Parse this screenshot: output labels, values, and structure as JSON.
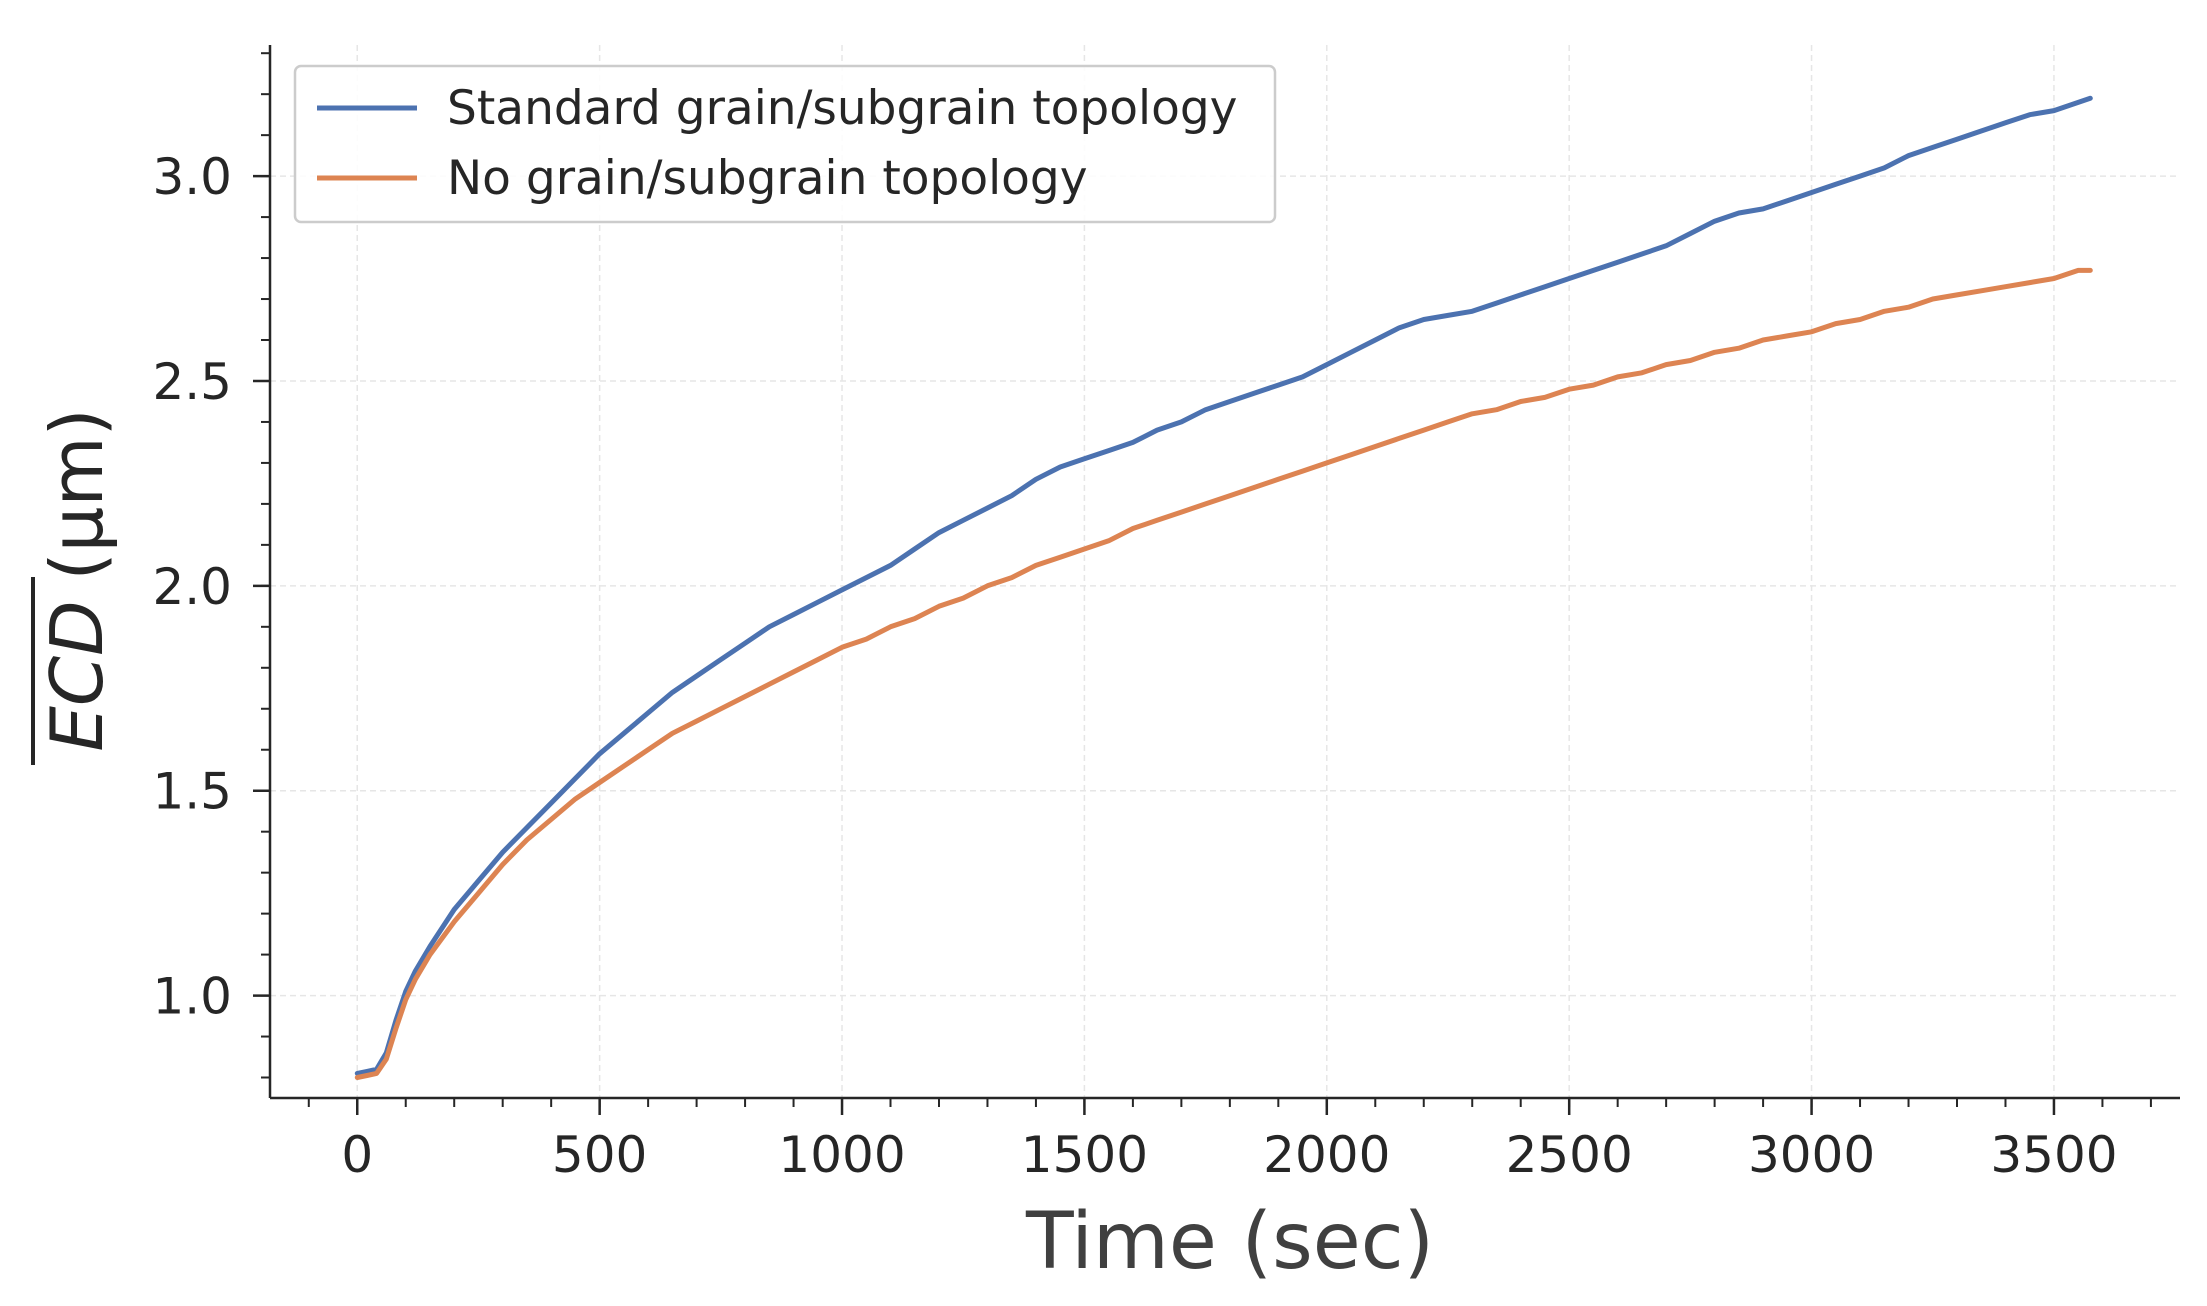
{
  "chart_data": {
    "type": "line",
    "xlabel": "Time (sec)",
    "ylabel": "ECD",
    "ylabel_unit": "(μm)",
    "xlim": [
      -180,
      3760
    ],
    "ylim": [
      0.75,
      3.32
    ],
    "x_ticks": [
      0,
      500,
      1000,
      1500,
      2000,
      2500,
      3000,
      3500
    ],
    "x_tick_labels": [
      "0",
      "500",
      "1000",
      "1500",
      "2000",
      "2500",
      "3000",
      "3500"
    ],
    "x_minor_step": 100,
    "y_ticks": [
      1.0,
      1.5,
      2.0,
      2.5,
      3.0
    ],
    "y_tick_labels": [
      "1.0",
      "1.5",
      "2.0",
      "2.5",
      "3.0"
    ],
    "y_minor_step": 0.1,
    "grid": true,
    "legend_position": "top-left",
    "series": [
      {
        "name": "Standard grain/subgrain topology",
        "color": "#4c72b0",
        "x": [
          0,
          20,
          40,
          60,
          80,
          100,
          120,
          150,
          200,
          250,
          300,
          350,
          400,
          450,
          500,
          550,
          600,
          650,
          700,
          750,
          800,
          850,
          900,
          950,
          1000,
          1050,
          1100,
          1150,
          1200,
          1250,
          1300,
          1350,
          1400,
          1450,
          1500,
          1550,
          1600,
          1650,
          1700,
          1750,
          1800,
          1850,
          1900,
          1950,
          2000,
          2050,
          2100,
          2150,
          2200,
          2250,
          2300,
          2350,
          2400,
          2450,
          2500,
          2550,
          2600,
          2650,
          2700,
          2750,
          2800,
          2850,
          2900,
          2950,
          3000,
          3050,
          3100,
          3150,
          3200,
          3250,
          3300,
          3350,
          3400,
          3450,
          3500,
          3550,
          3575
        ],
        "values": [
          0.81,
          0.815,
          0.82,
          0.86,
          0.94,
          1.01,
          1.06,
          1.12,
          1.21,
          1.28,
          1.35,
          1.41,
          1.47,
          1.53,
          1.59,
          1.64,
          1.69,
          1.74,
          1.78,
          1.82,
          1.86,
          1.9,
          1.93,
          1.96,
          1.99,
          2.02,
          2.05,
          2.09,
          2.13,
          2.16,
          2.19,
          2.22,
          2.26,
          2.29,
          2.31,
          2.33,
          2.35,
          2.38,
          2.4,
          2.43,
          2.45,
          2.47,
          2.49,
          2.51,
          2.54,
          2.57,
          2.6,
          2.63,
          2.65,
          2.66,
          2.67,
          2.69,
          2.71,
          2.73,
          2.75,
          2.77,
          2.79,
          2.81,
          2.83,
          2.86,
          2.89,
          2.91,
          2.92,
          2.94,
          2.96,
          2.98,
          3.0,
          3.02,
          3.05,
          3.07,
          3.09,
          3.11,
          3.13,
          3.15,
          3.16,
          3.18,
          3.19
        ]
      },
      {
        "name": "No grain/subgrain topology",
        "color": "#dd8452",
        "x": [
          0,
          20,
          40,
          60,
          80,
          100,
          120,
          150,
          200,
          250,
          300,
          350,
          400,
          450,
          500,
          550,
          600,
          650,
          700,
          750,
          800,
          850,
          900,
          950,
          1000,
          1050,
          1100,
          1150,
          1200,
          1250,
          1300,
          1350,
          1400,
          1450,
          1500,
          1550,
          1600,
          1650,
          1700,
          1750,
          1800,
          1850,
          1900,
          1950,
          2000,
          2050,
          2100,
          2150,
          2200,
          2250,
          2300,
          2350,
          2400,
          2450,
          2500,
          2550,
          2600,
          2650,
          2700,
          2750,
          2800,
          2850,
          2900,
          2950,
          3000,
          3050,
          3100,
          3150,
          3200,
          3250,
          3300,
          3350,
          3400,
          3450,
          3500,
          3550,
          3575
        ],
        "values": [
          0.8,
          0.805,
          0.81,
          0.845,
          0.92,
          0.99,
          1.04,
          1.1,
          1.18,
          1.25,
          1.32,
          1.38,
          1.43,
          1.48,
          1.52,
          1.56,
          1.6,
          1.64,
          1.67,
          1.7,
          1.73,
          1.76,
          1.79,
          1.82,
          1.85,
          1.87,
          1.9,
          1.92,
          1.95,
          1.97,
          2.0,
          2.02,
          2.05,
          2.07,
          2.09,
          2.11,
          2.14,
          2.16,
          2.18,
          2.2,
          2.22,
          2.24,
          2.26,
          2.28,
          2.3,
          2.32,
          2.34,
          2.36,
          2.38,
          2.4,
          2.42,
          2.43,
          2.45,
          2.46,
          2.48,
          2.49,
          2.51,
          2.52,
          2.54,
          2.55,
          2.57,
          2.58,
          2.6,
          2.61,
          2.62,
          2.64,
          2.65,
          2.67,
          2.68,
          2.7,
          2.71,
          2.72,
          2.73,
          2.74,
          2.75,
          2.77,
          2.77
        ]
      }
    ]
  }
}
